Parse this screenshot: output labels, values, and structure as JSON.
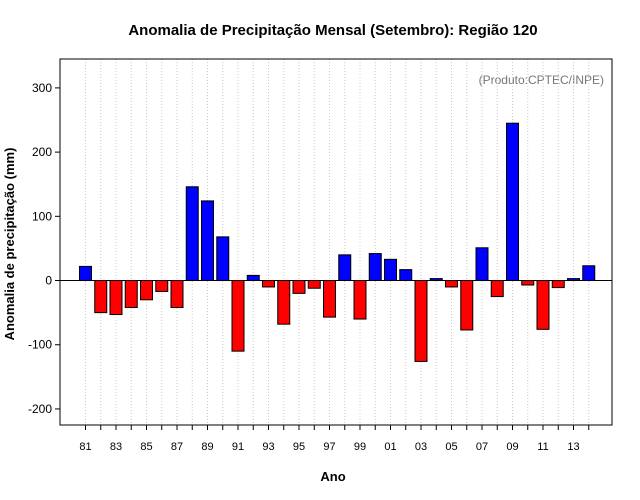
{
  "chart_data": {
    "type": "bar",
    "title": "Anomalia de Precipitação Mensal (Setembro): Região 120",
    "xlabel": "Ano",
    "ylabel": "Anomalia de precipitação (mm)",
    "annotation": "(Produto:CPTEC/INPE)",
    "ylim": [
      -225,
      345
    ],
    "yticks": [
      -200,
      -100,
      0,
      100,
      200,
      300
    ],
    "grid": "vertical dotted",
    "categories": [
      "81",
      "82",
      "83",
      "84",
      "85",
      "86",
      "87",
      "88",
      "89",
      "90",
      "91",
      "92",
      "93",
      "94",
      "95",
      "96",
      "97",
      "98",
      "99",
      "00",
      "01",
      "02",
      "03",
      "04",
      "05",
      "06",
      "07",
      "08",
      "09",
      "10",
      "11",
      "12",
      "13",
      "14"
    ],
    "xtick_labels": [
      "81",
      "83",
      "85",
      "87",
      "89",
      "91",
      "93",
      "95",
      "97",
      "99",
      "01",
      "03",
      "05",
      "07",
      "09",
      "11",
      "13"
    ],
    "values": [
      22,
      -50,
      -53,
      -42,
      -30,
      -17,
      -42,
      146,
      124,
      68,
      -110,
      8,
      -10,
      -68,
      -20,
      -12,
      -57,
      40,
      -60,
      42,
      33,
      17,
      -126,
      3,
      -10,
      -77,
      51,
      -25,
      245,
      -7,
      -76,
      -11,
      3,
      23
    ],
    "colors": {
      "positive": "#0000ff",
      "negative": "#ff0000",
      "zero_line": "#000000",
      "grid": "#c8c8c8"
    }
  }
}
